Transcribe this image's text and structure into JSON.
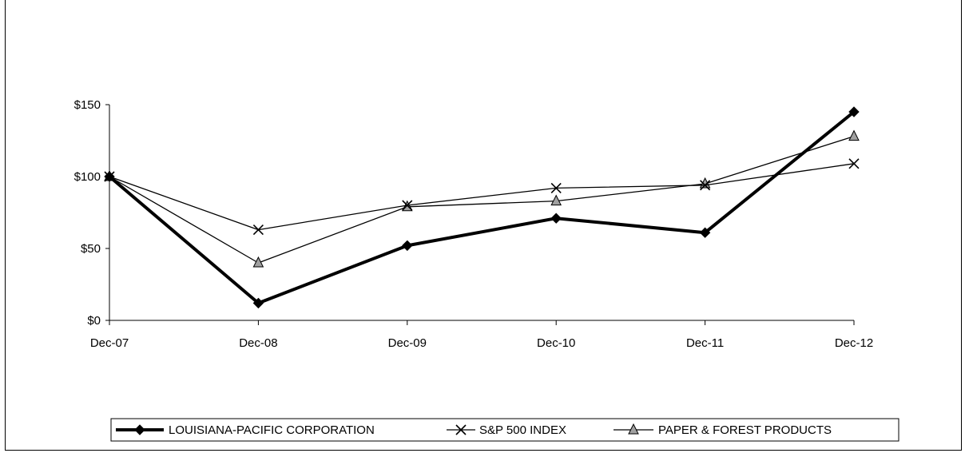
{
  "chart_data": {
    "type": "line",
    "categories": [
      "Dec-07",
      "Dec-08",
      "Dec-09",
      "Dec-10",
      "Dec-11",
      "Dec-12"
    ],
    "ylim": [
      0,
      150
    ],
    "yticks": [
      0,
      50,
      100,
      150
    ],
    "ytick_labels": [
      "$0",
      "$50",
      "$100",
      "$150"
    ],
    "grid": false,
    "legend_position": "bottom",
    "series": [
      {
        "name": "LOUISIANA-PACIFIC CORPORATION",
        "values": [
          100,
          12,
          52,
          71,
          61,
          145
        ],
        "color": "#000000",
        "marker": "diamond"
      },
      {
        "name": "S&P 500 INDEX",
        "values": [
          100,
          63,
          80,
          92,
          94,
          109
        ],
        "color": "#000000",
        "marker": "x"
      },
      {
        "name": "PAPER & FOREST PRODUCTS",
        "values": [
          100,
          40,
          79,
          83,
          95,
          128
        ],
        "color": "#000000",
        "marker": "triangle",
        "marker_fill": "#a0a0a0"
      }
    ]
  }
}
